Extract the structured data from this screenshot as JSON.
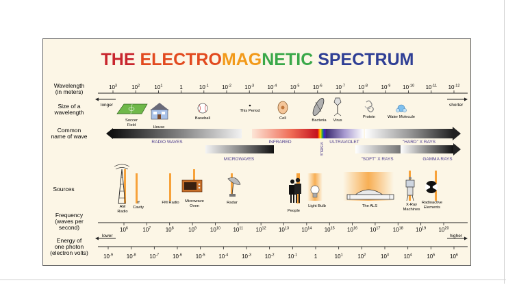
{
  "title_parts": [
    {
      "text": "THE ",
      "color": "#c8262e"
    },
    {
      "text": "ELECTRO",
      "color": "#e24a1f"
    },
    {
      "text": "MAG",
      "color": "#f29a1a"
    },
    {
      "text": "NETIC",
      "color": "#3aa849"
    },
    {
      "text": " SPECTRUM",
      "color": "#2f3f95"
    }
  ],
  "rows": {
    "wavelength": "Wavelength|(in meters)",
    "size": "Size of a|wavelength",
    "common": "Common|name of wave",
    "sources": "Sources",
    "frequency": "Frequency|(waves per|second)",
    "energy": "Energy of|one photon|(electron volts)"
  },
  "wavelength_ticks": [
    {
      "base": "10",
      "exp": "3"
    },
    {
      "base": "10",
      "exp": "2"
    },
    {
      "base": "10",
      "exp": "1"
    },
    {
      "base": "1",
      "exp": ""
    },
    {
      "base": "10",
      "exp": "-1"
    },
    {
      "base": "10",
      "exp": "-2"
    },
    {
      "base": "10",
      "exp": "-3"
    },
    {
      "base": "10",
      "exp": "-4"
    },
    {
      "base": "10",
      "exp": "-5"
    },
    {
      "base": "10",
      "exp": "-6"
    },
    {
      "base": "10",
      "exp": "-7"
    },
    {
      "base": "10",
      "exp": "-8"
    },
    {
      "base": "10",
      "exp": "-9"
    },
    {
      "base": "10",
      "exp": "-10"
    },
    {
      "base": "10",
      "exp": "-11"
    },
    {
      "base": "10",
      "exp": "-12"
    }
  ],
  "direction": {
    "longer": "longer",
    "shorter": "shorter",
    "lower": "lower",
    "higher": "higher"
  },
  "size_objects": [
    {
      "label": "Soccer|Field",
      "icon": "soccer-field-icon"
    },
    {
      "label": "House",
      "icon": "house-icon"
    },
    {
      "label": "Baseball",
      "icon": "baseball-icon"
    },
    {
      "label": "This Period",
      "icon": "period-dot-icon"
    },
    {
      "label": "Cell",
      "icon": "cell-icon"
    },
    {
      "label": "Bacteria",
      "icon": "bacteria-icon"
    },
    {
      "label": "Virus",
      "icon": "virus-icon"
    },
    {
      "label": "Protein",
      "icon": "protein-icon"
    },
    {
      "label": "Water Molecule",
      "icon": "water-molecule-icon"
    }
  ],
  "wave_names": {
    "radio": "RADIO WAVES",
    "infrared": "INFRARED",
    "visible": "VISIBLE",
    "ultraviolet": "ULTRAVIOLET",
    "hard_xrays": "\"HARD\" X RAYS",
    "microwaves": "MICROWAVES",
    "soft_xrays": "\"SOFT\" X RAYS",
    "gamma": "GAMMA RAYS"
  },
  "sources": [
    {
      "label": "AM|Radio",
      "icon": "radio-tower-icon"
    },
    {
      "label": "rf|Cavity",
      "icon": "rf-cavity-icon"
    },
    {
      "label": "FM Radio",
      "icon": "fm-radio-icon"
    },
    {
      "label": "Microwave|Oven",
      "icon": "microwave-oven-icon"
    },
    {
      "label": "Radar",
      "icon": "radar-dish-icon"
    },
    {
      "label": "People",
      "icon": "people-icon"
    },
    {
      "label": "Light Bulb",
      "icon": "light-bulb-icon"
    },
    {
      "label": "The ALS",
      "icon": "als-building-icon"
    },
    {
      "label": "X-Ray|Machines",
      "icon": "xray-machine-icon"
    },
    {
      "label": "Radioactive|Elements",
      "icon": "radioactive-icon"
    }
  ],
  "frequency_ticks": [
    {
      "base": "10",
      "exp": "6"
    },
    {
      "base": "10",
      "exp": "7"
    },
    {
      "base": "10",
      "exp": "8"
    },
    {
      "base": "10",
      "exp": "9"
    },
    {
      "base": "10",
      "exp": "10"
    },
    {
      "base": "10",
      "exp": "11"
    },
    {
      "base": "10",
      "exp": "12"
    },
    {
      "base": "10",
      "exp": "13"
    },
    {
      "base": "10",
      "exp": "14"
    },
    {
      "base": "10",
      "exp": "15"
    },
    {
      "base": "10",
      "exp": "16"
    },
    {
      "base": "10",
      "exp": "17"
    },
    {
      "base": "10",
      "exp": "18"
    },
    {
      "base": "10",
      "exp": "19"
    },
    {
      "base": "10",
      "exp": "20"
    }
  ],
  "energy_ticks": [
    {
      "base": "10",
      "exp": "-9"
    },
    {
      "base": "10",
      "exp": "-8"
    },
    {
      "base": "10",
      "exp": "-7"
    },
    {
      "base": "10",
      "exp": "-6"
    },
    {
      "base": "10",
      "exp": "-5"
    },
    {
      "base": "10",
      "exp": "-4"
    },
    {
      "base": "10",
      "exp": "-3"
    },
    {
      "base": "10",
      "exp": "-2"
    },
    {
      "base": "10",
      "exp": "-1"
    },
    {
      "base": "1",
      "exp": ""
    },
    {
      "base": "10",
      "exp": "1"
    },
    {
      "base": "10",
      "exp": "2"
    },
    {
      "base": "10",
      "exp": "3"
    },
    {
      "base": "10",
      "exp": "4"
    },
    {
      "base": "10",
      "exp": "5"
    },
    {
      "base": "10",
      "exp": "6"
    }
  ],
  "colors": {
    "frame": "#666666",
    "panel": "#fcf6e6",
    "gray_band": "#6e6e6e",
    "orange_glow": "#f7b04a",
    "label_purple": "#4a3a8c"
  }
}
